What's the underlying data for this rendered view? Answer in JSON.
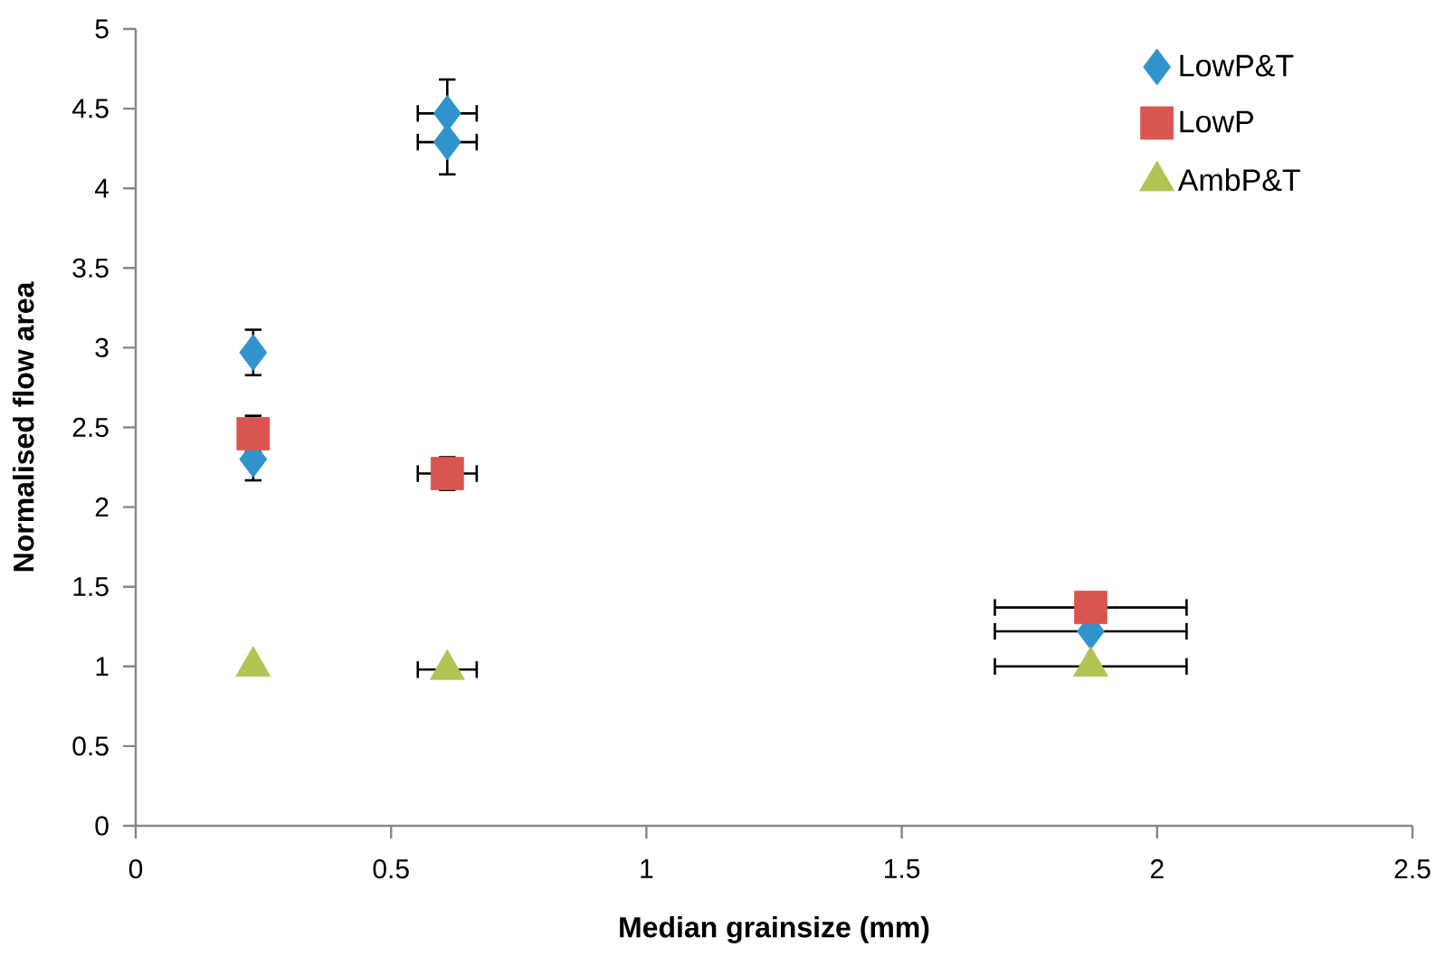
{
  "chart_data": {
    "type": "scatter",
    "xlabel": "Median grainsize (mm)",
    "ylabel": "Normalised flow area",
    "xlim": [
      0,
      2.5
    ],
    "xticks": [
      0,
      0.5,
      1,
      1.5,
      2,
      2.5
    ],
    "ylim": [
      0,
      5
    ],
    "yticks": [
      0,
      0.5,
      1,
      1.5,
      2,
      2.5,
      3,
      3.5,
      4,
      4.5,
      5
    ],
    "grid": false,
    "legend": "top right",
    "series": [
      {
        "name": "LowP&T",
        "color": "#3193cb",
        "marker": "diamond",
        "x": [
          0.23,
          0.23,
          0.61,
          0.61,
          1.87
        ],
        "values": [
          2.97,
          2.3,
          4.47,
          4.29,
          1.22
        ],
        "errors": [
          0.15,
          0.14,
          0.22,
          0.21,
          null
        ],
        "xerrors": [
          null,
          null,
          0.06,
          0.06,
          0.19
        ]
      },
      {
        "name": "LowP",
        "color": "#d85550",
        "marker": "square",
        "x": [
          0.23,
          0.61,
          1.87
        ],
        "values": [
          2.46,
          2.21,
          1.37
        ],
        "errors": [
          0.12,
          0.11,
          null
        ],
        "xerrors": [
          null,
          0.06,
          0.19
        ]
      },
      {
        "name": "AmbP&T",
        "color": "#b3c353",
        "marker": "triangle",
        "x": [
          0.23,
          0.61,
          1.87
        ],
        "values": [
          1.0,
          0.98,
          1.0
        ],
        "errors": [
          null,
          null,
          null
        ],
        "xerrors": [
          null,
          0.06,
          0.19
        ]
      }
    ]
  }
}
